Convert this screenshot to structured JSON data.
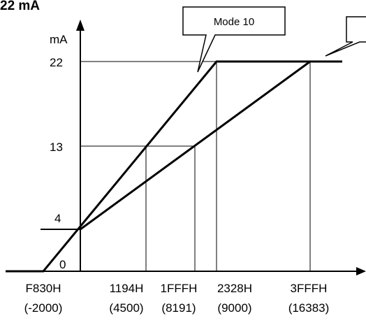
{
  "diagram": {
    "title": "22 mA",
    "y_unit": "mA",
    "y_ticks": [
      "22",
      "13",
      "4",
      "0"
    ],
    "x_ticks": [
      {
        "hex": "F830H",
        "dec": "(-2000)"
      },
      {
        "hex": "1194H",
        "dec": "(4500)"
      },
      {
        "hex": "1FFFH",
        "dec": "(8191)"
      },
      {
        "hex": "2328H",
        "dec": "(9000)"
      },
      {
        "hex": "3FFFH",
        "dec": "(16383)"
      }
    ],
    "callouts": [
      {
        "label": "Mode 10"
      },
      {
        "label": ""
      }
    ]
  }
}
